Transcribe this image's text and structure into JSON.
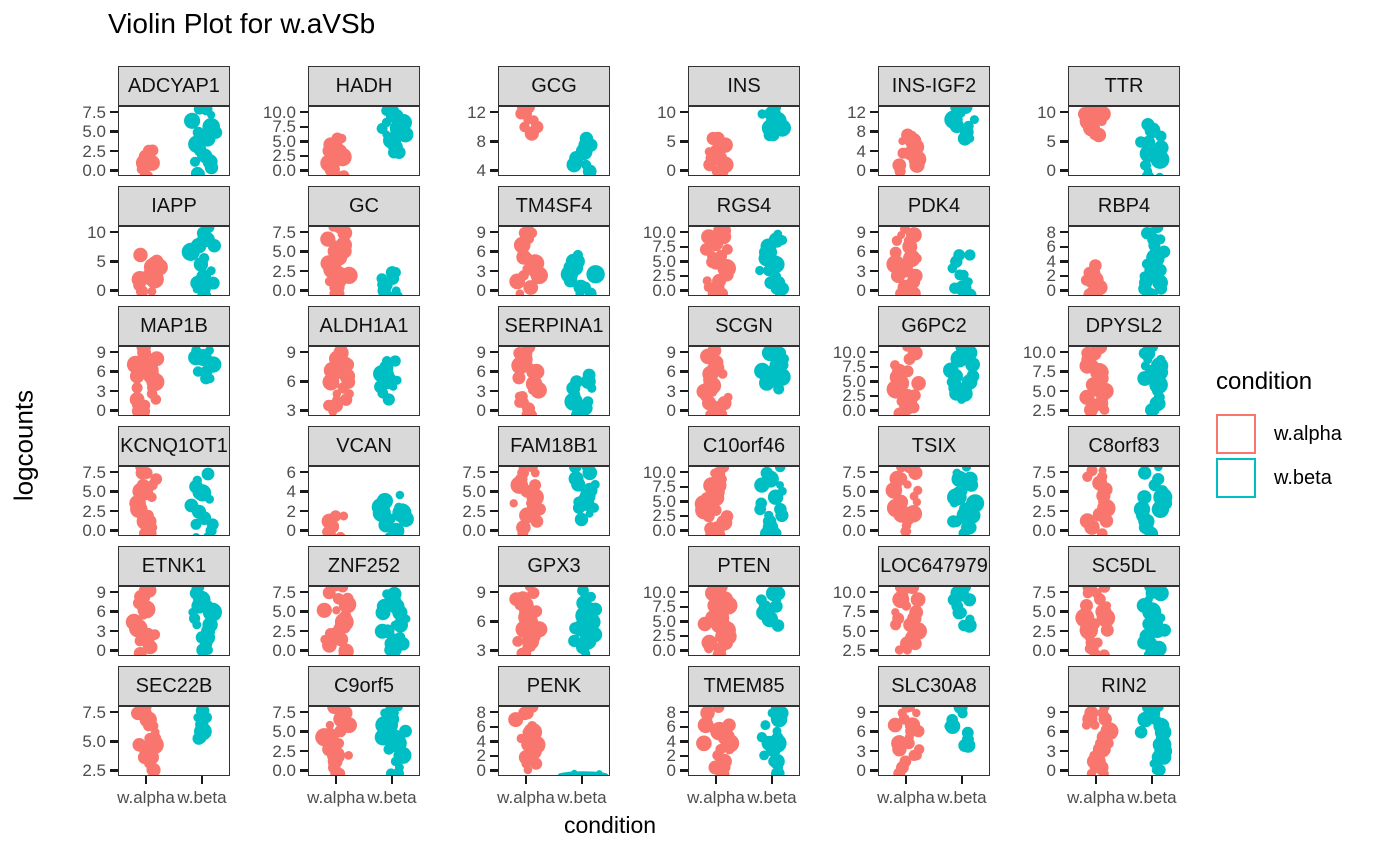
{
  "title": "Violin Plot for w.aVSb",
  "y_axis_label": "logcounts",
  "x_axis_label": "condition",
  "colors": {
    "alpha": "#F8766D",
    "beta": "#00BFC4",
    "strip_bg": "#D9D9D9",
    "panel_border": "#333333",
    "tick_text": "#4D4D4D",
    "text": "#000000"
  },
  "legend": {
    "title": "condition",
    "entries": [
      {
        "label": "w.alpha",
        "color": "#F8766D"
      },
      {
        "label": "w.beta",
        "color": "#00BFC4"
      }
    ]
  },
  "chart_data": {
    "type": "violin",
    "x_categories": [
      "w.alpha",
      "w.beta"
    ],
    "grid": "6x6 facets, free y scales, no gridlines",
    "facets": [
      {
        "gene": "ADCYAP1",
        "y_ticks": [
          "7.5",
          "5.0",
          "2.5",
          "0.0"
        ],
        "violins": {
          "w.alpha": [
            0.02,
            0.38
          ],
          "w.beta": [
            0.05,
            0.97
          ]
        }
      },
      {
        "gene": "HADH",
        "y_ticks": [
          "10.0",
          "7.5",
          "5.0",
          "2.5",
          "0.0"
        ],
        "violins": {
          "w.alpha": [
            0.02,
            0.55
          ],
          "w.beta": [
            0.35,
            0.95
          ]
        }
      },
      {
        "gene": "GCG",
        "y_ticks": [
          "12",
          "8",
          "4"
        ],
        "violins": {
          "w.alpha": [
            0.62,
            1.0
          ],
          "w.beta": [
            0.08,
            0.55
          ]
        }
      },
      {
        "gene": "INS",
        "y_ticks": [
          "10",
          "5",
          "0"
        ],
        "violins": {
          "w.alpha": [
            0.08,
            0.55
          ],
          "w.beta": [
            0.6,
            1.0
          ]
        }
      },
      {
        "gene": "INS-IGF2",
        "y_ticks": [
          "12",
          "8",
          "4",
          "0"
        ],
        "violins": {
          "w.alpha": [
            0.08,
            0.6
          ],
          "w.beta": [
            0.55,
            1.0
          ]
        }
      },
      {
        "gene": "TTR",
        "y_ticks": [
          "10",
          "5",
          "0"
        ],
        "violins": {
          "w.alpha": [
            0.6,
            1.0
          ],
          "w.beta": [
            0.0,
            0.75
          ]
        }
      },
      {
        "gene": "IAPP",
        "y_ticks": [
          "10",
          "5",
          "0"
        ],
        "violins": {
          "w.alpha": [
            0.08,
            0.6
          ],
          "w.beta": [
            0.02,
            1.0
          ]
        }
      },
      {
        "gene": "GC",
        "y_ticks": [
          "7.5",
          "5.0",
          "2.5",
          "0.0"
        ],
        "violins": {
          "w.alpha": [
            0.05,
            1.0
          ],
          "w.beta": [
            0.0,
            0.35
          ]
        }
      },
      {
        "gene": "TM4SF4",
        "y_ticks": [
          "9",
          "6",
          "3",
          "0"
        ],
        "violins": {
          "w.alpha": [
            0.05,
            1.0
          ],
          "w.beta": [
            0.05,
            0.6
          ]
        }
      },
      {
        "gene": "RGS4",
        "y_ticks": [
          "10.0",
          "7.5",
          "5.0",
          "2.5",
          "0.0"
        ],
        "violins": {
          "w.alpha": [
            0.05,
            0.95
          ],
          "w.beta": [
            0.03,
            0.9
          ]
        }
      },
      {
        "gene": "PDK4",
        "y_ticks": [
          "9",
          "6",
          "3",
          "0"
        ],
        "violins": {
          "w.alpha": [
            0.05,
            0.97
          ],
          "w.beta": [
            0.03,
            0.6
          ]
        }
      },
      {
        "gene": "RBP4",
        "y_ticks": [
          "8",
          "6",
          "4",
          "2",
          "0"
        ],
        "violins": {
          "w.alpha": [
            0.03,
            0.45
          ],
          "w.beta": [
            0.03,
            1.0
          ]
        }
      },
      {
        "gene": "MAP1B",
        "y_ticks": [
          "9",
          "6",
          "3",
          "0"
        ],
        "violins": {
          "w.alpha": [
            0.0,
            1.0
          ],
          "w.beta": [
            0.55,
            0.95
          ]
        }
      },
      {
        "gene": "ALDH1A1",
        "y_ticks": [
          "9",
          "6",
          "3"
        ],
        "violins": {
          "w.alpha": [
            0.08,
            1.0
          ],
          "w.beta": [
            0.25,
            0.8
          ]
        }
      },
      {
        "gene": "SERPINA1",
        "y_ticks": [
          "9",
          "6",
          "3",
          "0"
        ],
        "violins": {
          "w.alpha": [
            0.03,
            1.0
          ],
          "w.beta": [
            0.03,
            0.6
          ]
        }
      },
      {
        "gene": "SCGN",
        "y_ticks": [
          "9",
          "6",
          "3",
          "0"
        ],
        "violins": {
          "w.alpha": [
            0.03,
            0.95
          ],
          "w.beta": [
            0.4,
            1.0
          ]
        }
      },
      {
        "gene": "G6PC2",
        "y_ticks": [
          "10.0",
          "7.5",
          "5.0",
          "2.5",
          "0.0"
        ],
        "violins": {
          "w.alpha": [
            0.05,
            1.0
          ],
          "w.beta": [
            0.25,
            1.0
          ]
        }
      },
      {
        "gene": "DPYSL2",
        "y_ticks": [
          "10.0",
          "7.5",
          "5.0",
          "2.5"
        ],
        "violins": {
          "w.alpha": [
            0.1,
            1.0
          ],
          "w.beta": [
            0.1,
            1.0
          ]
        }
      },
      {
        "gene": "KCNQ1OT1",
        "y_ticks": [
          "7.5",
          "5.0",
          "2.5",
          "0.0"
        ],
        "violins": {
          "w.alpha": [
            0.05,
            1.0
          ],
          "w.beta": [
            0.0,
            0.9
          ]
        }
      },
      {
        "gene": "VCAN",
        "y_ticks": [
          "6",
          "4",
          "2",
          "0"
        ],
        "violins": {
          "w.alpha": [
            0.0,
            0.3
          ],
          "w.beta": [
            0.0,
            0.6
          ]
        }
      },
      {
        "gene": "FAM18B1",
        "y_ticks": [
          "7.5",
          "5.0",
          "2.5",
          "0.0"
        ],
        "violins": {
          "w.alpha": [
            0.05,
            1.0
          ],
          "w.beta": [
            0.25,
            1.0
          ]
        }
      },
      {
        "gene": "C10orf46",
        "y_ticks": [
          "10.0",
          "7.5",
          "5.0",
          "2.5",
          "0.0"
        ],
        "violins": {
          "w.alpha": [
            0.03,
            1.0
          ],
          "w.beta": [
            0.05,
            1.0
          ]
        }
      },
      {
        "gene": "TSIX",
        "y_ticks": [
          "7.5",
          "5.0",
          "2.5",
          "0.0"
        ],
        "violins": {
          "w.alpha": [
            0.08,
            1.0
          ],
          "w.beta": [
            0.05,
            1.0
          ]
        }
      },
      {
        "gene": "C8orf83",
        "y_ticks": [
          "7.5",
          "5.0",
          "2.5",
          "0.0"
        ],
        "violins": {
          "w.alpha": [
            0.05,
            0.95
          ],
          "w.beta": [
            0.05,
            1.0
          ]
        }
      },
      {
        "gene": "ETNK1",
        "y_ticks": [
          "9",
          "6",
          "3",
          "0"
        ],
        "violins": {
          "w.alpha": [
            0.05,
            0.95
          ],
          "w.beta": [
            0.1,
            1.0
          ]
        }
      },
      {
        "gene": "ZNF252",
        "y_ticks": [
          "7.5",
          "5.0",
          "2.5",
          "0.0"
        ],
        "violins": {
          "w.alpha": [
            0.0,
            1.0
          ],
          "w.beta": [
            0.1,
            0.9
          ]
        }
      },
      {
        "gene": "GPX3",
        "y_ticks": [
          "9",
          "6",
          "3"
        ],
        "violins": {
          "w.alpha": [
            0.05,
            1.0
          ],
          "w.beta": [
            0.05,
            0.95
          ]
        }
      },
      {
        "gene": "PTEN",
        "y_ticks": [
          "10.0",
          "7.5",
          "5.0",
          "2.5",
          "0.0"
        ],
        "violins": {
          "w.alpha": [
            0.03,
            1.0
          ],
          "w.beta": [
            0.45,
            1.0
          ]
        }
      },
      {
        "gene": "LOC647979",
        "y_ticks": [
          "10.0",
          "7.5",
          "5.0",
          "2.5"
        ],
        "violins": {
          "w.alpha": [
            0.1,
            1.0
          ],
          "w.beta": [
            0.45,
            1.0
          ]
        }
      },
      {
        "gene": "SC5DL",
        "y_ticks": [
          "7.5",
          "5.0",
          "2.5",
          "0.0"
        ],
        "violins": {
          "w.alpha": [
            0.03,
            1.0
          ],
          "w.beta": [
            0.03,
            1.0
          ]
        }
      },
      {
        "gene": "SEC22B",
        "y_ticks": [
          "7.5",
          "5.0",
          "2.5"
        ],
        "violins": {
          "w.alpha": [
            0.1,
            1.0
          ],
          "w.beta": [
            0.55,
            0.95
          ]
        }
      },
      {
        "gene": "C9orf5",
        "y_ticks": [
          "7.5",
          "5.0",
          "2.5",
          "0.0"
        ],
        "violins": {
          "w.alpha": [
            0.05,
            1.0
          ],
          "w.beta": [
            0.05,
            1.0
          ]
        }
      },
      {
        "gene": "PENK",
        "y_ticks": [
          "8",
          "6",
          "4",
          "2",
          "0"
        ],
        "violins": {
          "w.alpha": [
            0.1,
            1.0
          ],
          "w.beta": [
            0.0,
            0.07
          ]
        }
      },
      {
        "gene": "TMEM85",
        "y_ticks": [
          "8",
          "6",
          "4",
          "2",
          "0"
        ],
        "violins": {
          "w.alpha": [
            0.05,
            1.0
          ],
          "w.beta": [
            0.05,
            1.0
          ]
        }
      },
      {
        "gene": "SLC30A8",
        "y_ticks": [
          "9",
          "6",
          "3",
          "0"
        ],
        "violins": {
          "w.alpha": [
            0.05,
            1.0
          ],
          "w.beta": [
            0.45,
            1.0
          ]
        }
      },
      {
        "gene": "RIN2",
        "y_ticks": [
          "9",
          "6",
          "3",
          "0"
        ],
        "violins": {
          "w.alpha": [
            0.05,
            1.0
          ],
          "w.beta": [
            0.1,
            1.0
          ]
        }
      }
    ]
  }
}
